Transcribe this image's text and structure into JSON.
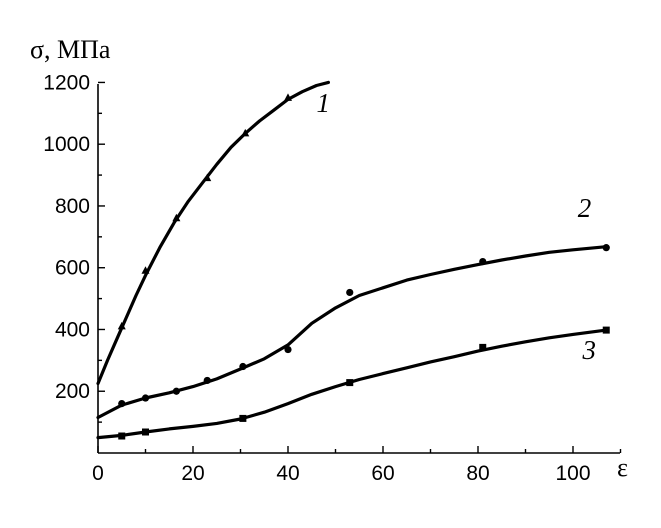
{
  "chart_data": {
    "type": "line",
    "ylabel": "σ, МПа",
    "xlabel": "ε",
    "xlim": [
      0,
      110
    ],
    "ylim": [
      0,
      1200
    ],
    "x_ticks": [
      0,
      20,
      40,
      60,
      80,
      100
    ],
    "y_ticks": [
      200,
      400,
      600,
      800,
      1000,
      1200
    ],
    "grid": false,
    "legend": "none",
    "series": [
      {
        "name": "1",
        "marker": "triangle",
        "points": [
          [
            5,
            410
          ],
          [
            10,
            590
          ],
          [
            16.5,
            760
          ],
          [
            23,
            890
          ],
          [
            31,
            1035
          ],
          [
            40,
            1150
          ]
        ],
        "line": [
          [
            0,
            225
          ],
          [
            2,
            300
          ],
          [
            4,
            370
          ],
          [
            6,
            440
          ],
          [
            8,
            510
          ],
          [
            10,
            575
          ],
          [
            13,
            665
          ],
          [
            16,
            745
          ],
          [
            19,
            815
          ],
          [
            22,
            875
          ],
          [
            25,
            935
          ],
          [
            28,
            990
          ],
          [
            31,
            1035
          ],
          [
            34,
            1075
          ],
          [
            37,
            1110
          ],
          [
            40,
            1145
          ],
          [
            43,
            1170
          ],
          [
            46,
            1190
          ],
          [
            48.5,
            1200
          ]
        ]
      },
      {
        "name": "2",
        "marker": "circle",
        "points": [
          [
            5,
            160
          ],
          [
            10,
            178
          ],
          [
            16.5,
            200
          ],
          [
            23,
            235
          ],
          [
            30.5,
            280
          ],
          [
            40,
            335
          ],
          [
            53,
            520
          ],
          [
            81,
            620
          ],
          [
            107,
            665
          ]
        ],
        "line": [
          [
            0,
            115
          ],
          [
            5,
            155
          ],
          [
            10,
            178
          ],
          [
            15,
            195
          ],
          [
            20,
            215
          ],
          [
            25,
            240
          ],
          [
            30,
            272
          ],
          [
            35,
            305
          ],
          [
            40,
            350
          ],
          [
            45,
            420
          ],
          [
            50,
            470
          ],
          [
            55,
            510
          ],
          [
            60,
            535
          ],
          [
            65,
            560
          ],
          [
            70,
            578
          ],
          [
            75,
            595
          ],
          [
            80,
            610
          ],
          [
            85,
            625
          ],
          [
            90,
            638
          ],
          [
            95,
            650
          ],
          [
            100,
            658
          ],
          [
            107,
            668
          ]
        ]
      },
      {
        "name": "3",
        "marker": "square",
        "points": [
          [
            5,
            55
          ],
          [
            10,
            68
          ],
          [
            30.5,
            112
          ],
          [
            53,
            228
          ],
          [
            81,
            342
          ],
          [
            107,
            398
          ]
        ],
        "line": [
          [
            0,
            50
          ],
          [
            5,
            57
          ],
          [
            10,
            68
          ],
          [
            15,
            78
          ],
          [
            20,
            86
          ],
          [
            25,
            96
          ],
          [
            30,
            110
          ],
          [
            35,
            132
          ],
          [
            40,
            160
          ],
          [
            45,
            190
          ],
          [
            50,
            215
          ],
          [
            55,
            238
          ],
          [
            60,
            257
          ],
          [
            65,
            276
          ],
          [
            70,
            295
          ],
          [
            75,
            312
          ],
          [
            80,
            330
          ],
          [
            85,
            346
          ],
          [
            90,
            360
          ],
          [
            95,
            373
          ],
          [
            100,
            384
          ],
          [
            107,
            398
          ]
        ]
      }
    ],
    "curve_labels": [
      {
        "text": "1",
        "x": 46,
        "y": 1105
      },
      {
        "text": "2",
        "x": 101,
        "y": 765
      },
      {
        "text": "3",
        "x": 102,
        "y": 305
      }
    ]
  }
}
